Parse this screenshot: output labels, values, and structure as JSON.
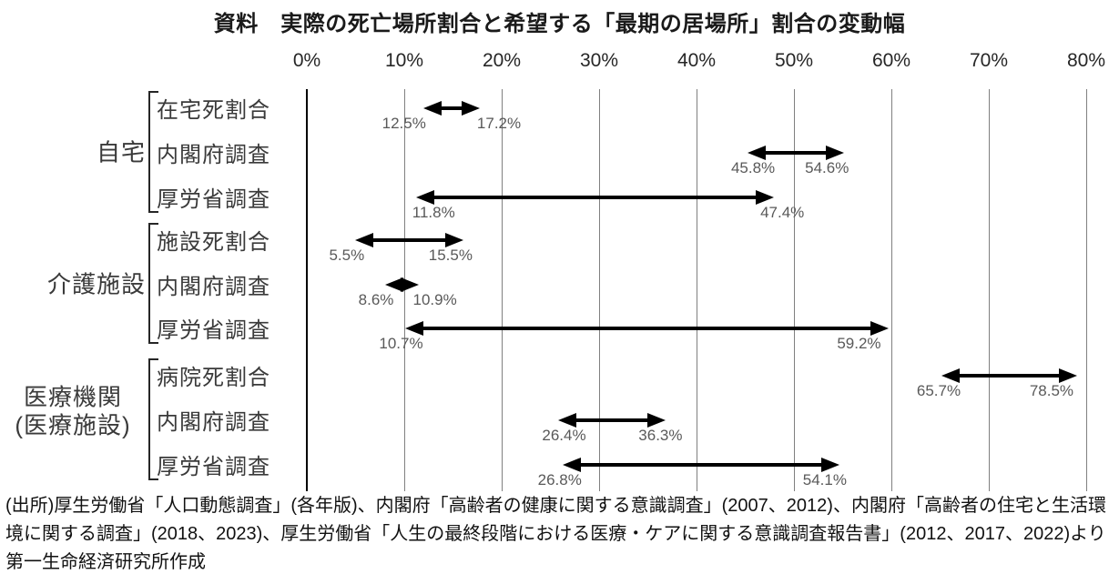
{
  "title": "資料　実際の死亡場所割合と希望する「最期の居場所」割合の変動幅",
  "source_note": "(出所)厚生労働省「人口動態調査」(各年版)、内閣府「高齢者の健康に関する意識調査」(2007、2012)、内閣府「高齢者の住宅と生活環境に関する調査」(2018、2023)、厚生労働省「人生の最終段階における医療・ケアに関する意識調査報告書」(2012、2017、2022)より第一生命経済研究所作成",
  "colors": {
    "background": "#ffffff",
    "arrow": "#000000",
    "gridline": "#808080",
    "axis_line": "#000000",
    "value_label": "#595959",
    "label_text": "#3a3a3a",
    "title_text": "#1a1a1a"
  },
  "chart_data": {
    "type": "bar",
    "subtype": "horizontal-range-arrows",
    "title": "資料　実際の死亡場所割合と希望する「最期の居場所」割合の変動幅",
    "xlabel": "",
    "ylabel": "",
    "unit": "%",
    "xlim": [
      0,
      80
    ],
    "tick_interval": 10,
    "x_tick_labels": [
      "0%",
      "10%",
      "20%",
      "30%",
      "40%",
      "50%",
      "60%",
      "70%",
      "80%"
    ],
    "grid": "vertical-gridlines-on",
    "legend": "none",
    "groups": [
      {
        "label": "自宅",
        "rows": [
          {
            "label": "在宅死割合",
            "from": 12.5,
            "to": 17.2,
            "from_label": "12.5%",
            "to_label": "17.2%"
          },
          {
            "label": "内閣府調査",
            "from": 45.8,
            "to": 54.6,
            "from_label": "45.8%",
            "to_label": "54.6%"
          },
          {
            "label": "厚労省調査",
            "from": 11.8,
            "to": 47.4,
            "from_label": "11.8%",
            "to_label": "47.4%"
          }
        ]
      },
      {
        "label": "介護施設",
        "rows": [
          {
            "label": "施設死割合",
            "from": 5.5,
            "to": 15.5,
            "from_label": "5.5%",
            "to_label": "15.5%"
          },
          {
            "label": "内閣府調査",
            "from": 8.6,
            "to": 10.9,
            "from_label": "8.6%",
            "to_label": "10.9%"
          },
          {
            "label": "厚労省調査",
            "from": 10.7,
            "to": 59.2,
            "from_label": "10.7%",
            "to_label": "59.2%"
          }
        ]
      },
      {
        "label": "医療機関",
        "label_line2": "(医療施設)",
        "rows": [
          {
            "label": "病院死割合",
            "from": 65.7,
            "to": 78.5,
            "from_label": "65.7%",
            "to_label": "78.5%"
          },
          {
            "label": "内閣府調査",
            "from": 26.4,
            "to": 36.3,
            "from_label": "26.4%",
            "to_label": "36.3%"
          },
          {
            "label": "厚労省調査",
            "from": 26.8,
            "to": 54.1,
            "from_label": "26.8%",
            "to_label": "54.1%"
          }
        ]
      }
    ]
  }
}
